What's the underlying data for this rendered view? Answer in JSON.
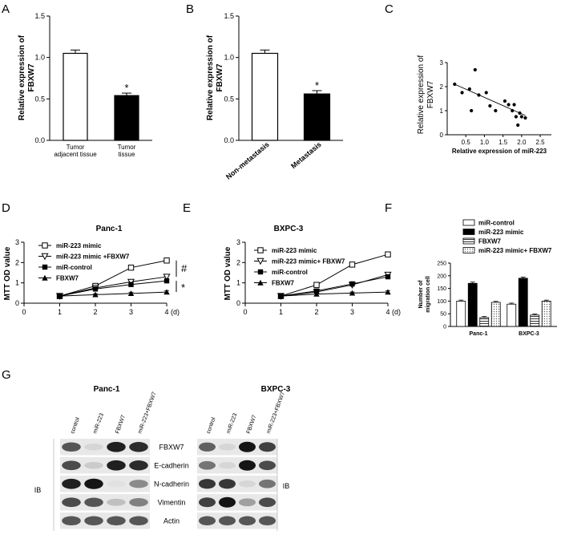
{
  "panels": {
    "A": "A",
    "B": "B",
    "C": "C",
    "D": "D",
    "E": "E",
    "F": "F",
    "G": "G"
  },
  "chart_data": [
    {
      "id": "A",
      "type": "bar",
      "categories": [
        "Tumor adjacent tissue",
        "Tumor tissue"
      ],
      "cat_lines": [
        [
          "Tumor",
          "adjacent tissue"
        ],
        [
          "Tumor",
          "tissue"
        ]
      ],
      "values": [
        1.05,
        0.54
      ],
      "errors": [
        0.04,
        0.03
      ],
      "fills": [
        "#ffffff",
        "#000000"
      ],
      "ylabel": "Relative expression of FBXW7",
      "ylabel_lines": [
        "Relative expression of",
        "FBXW7"
      ],
      "ylim": [
        0,
        1.5
      ],
      "yticks": [
        "0.0",
        "0.5",
        "1.0",
        "1.5"
      ],
      "annotation": "*"
    },
    {
      "id": "B",
      "type": "bar",
      "categories": [
        "Non-metastasis",
        "Metastasis"
      ],
      "values": [
        1.05,
        0.56
      ],
      "errors": [
        0.04,
        0.04
      ],
      "fills": [
        "#ffffff",
        "#000000"
      ],
      "ylabel": "Relative expression of FBXW7",
      "ylabel_lines": [
        "Relative expression of",
        "FBXW7"
      ],
      "ylim": [
        0,
        1.5
      ],
      "yticks": [
        "0.0",
        "0.5",
        "1.0",
        "1.5"
      ],
      "annotation": "*"
    },
    {
      "id": "C",
      "type": "scatter",
      "points": [
        [
          0.2,
          2.1
        ],
        [
          0.4,
          1.75
        ],
        [
          0.6,
          1.9
        ],
        [
          0.65,
          1.0
        ],
        [
          0.75,
          2.7
        ],
        [
          0.85,
          1.65
        ],
        [
          1.05,
          1.75
        ],
        [
          1.15,
          1.2
        ],
        [
          1.3,
          1.0
        ],
        [
          1.55,
          1.4
        ],
        [
          1.65,
          1.25
        ],
        [
          1.75,
          1.0
        ],
        [
          1.8,
          1.25
        ],
        [
          1.85,
          0.75
        ],
        [
          1.9,
          0.4
        ],
        [
          1.95,
          0.9
        ],
        [
          2.0,
          0.75
        ],
        [
          2.1,
          0.7
        ]
      ],
      "fit": [
        [
          0.2,
          2.1
        ],
        [
          2.1,
          0.8
        ]
      ],
      "xlabel": "Relative expression of miR-223",
      "ylabel": "Relative expression of FBXW7",
      "ylabel_lines": [
        "Relative expression of",
        "FBXW7"
      ],
      "xlim": [
        0,
        2.8
      ],
      "ylim": [
        0,
        3
      ],
      "xticks": [
        "0.5",
        "1.0",
        "1.5",
        "2.0",
        "2.5"
      ],
      "yticks": [
        "0",
        "1",
        "2",
        "3"
      ]
    },
    {
      "id": "D",
      "type": "line",
      "title": "Panc-1",
      "x": [
        1,
        2,
        3,
        4
      ],
      "xticks": [
        "0",
        "1",
        "2",
        "3",
        "4"
      ],
      "xunit": "(d)",
      "ylabel": "MTT OD value",
      "ylim": [
        0,
        3
      ],
      "yticks": [
        "0",
        "1",
        "2",
        "3"
      ],
      "series": [
        {
          "name": "miR-223 mimic",
          "marker": "square-open",
          "values": [
            0.35,
            0.85,
            1.75,
            2.1
          ],
          "errors": [
            0.03,
            0.06,
            0.08,
            0.1
          ]
        },
        {
          "name": "miR-223 mimic +FBXW7",
          "marker": "triangle-down-open",
          "values": [
            0.35,
            0.75,
            1.05,
            1.3
          ],
          "errors": [
            0.03,
            0.05,
            0.06,
            0.08
          ]
        },
        {
          "name": "miR-control",
          "marker": "square-filled",
          "values": [
            0.35,
            0.7,
            0.92,
            1.1
          ],
          "errors": [
            0.03,
            0.05,
            0.06,
            0.07
          ]
        },
        {
          "name": "FBXW7",
          "marker": "triangle-up-filled",
          "values": [
            0.35,
            0.42,
            0.48,
            0.55
          ],
          "errors": [
            0.03,
            0.05,
            0.06,
            0.07
          ]
        }
      ],
      "annotations": [
        "#",
        "*"
      ]
    },
    {
      "id": "E",
      "type": "line",
      "title": "BXPC-3",
      "x": [
        1,
        2,
        3,
        4
      ],
      "xticks": [
        "0",
        "1",
        "2",
        "3",
        "4"
      ],
      "xunit": "(d)",
      "ylabel": "MTT OD value",
      "ylim": [
        0,
        3
      ],
      "yticks": [
        "0",
        "1",
        "2",
        "3"
      ],
      "series": [
        {
          "name": "miR-223 mimic",
          "marker": "square-open",
          "values": [
            0.35,
            0.9,
            1.9,
            2.4
          ],
          "errors": [
            0.03,
            0.1,
            0.1,
            0.12
          ]
        },
        {
          "name": "miR-223 mimic+ FBXW7",
          "marker": "triangle-down-open",
          "values": [
            0.35,
            0.55,
            0.9,
            1.4
          ],
          "errors": [
            0.03,
            0.06,
            0.07,
            0.08
          ]
        },
        {
          "name": "miR-control",
          "marker": "square-filled",
          "values": [
            0.35,
            0.6,
            0.95,
            1.3
          ],
          "errors": [
            0.03,
            0.06,
            0.07,
            0.08
          ]
        },
        {
          "name": "FBXW7",
          "marker": "triangle-up-filled",
          "values": [
            0.35,
            0.45,
            0.5,
            0.55
          ],
          "errors": [
            0.03,
            0.05,
            0.05,
            0.06
          ]
        }
      ]
    },
    {
      "id": "F",
      "type": "bar",
      "categories": [
        "Panc-1",
        "BXPC-3"
      ],
      "ylabel": "Number of migration cell",
      "ylabel_lines": [
        "Number of",
        "migration cell"
      ],
      "ylim": [
        0,
        250
      ],
      "yticks": [
        "0",
        "50",
        "100",
        "150",
        "200",
        "250"
      ],
      "series": [
        {
          "name": "miR-control",
          "fill": "white",
          "values": [
            100,
            88
          ],
          "errors": [
            4,
            4
          ]
        },
        {
          "name": "miR-223 mimic",
          "fill": "black",
          "values": [
            170,
            190
          ],
          "errors": [
            5,
            5
          ]
        },
        {
          "name": "FBXW7",
          "fill": "hatch",
          "values": [
            35,
            45
          ],
          "errors": [
            4,
            4
          ]
        },
        {
          "name": "miR-223 mimic+ FBXW7",
          "fill": "dots",
          "values": [
            95,
            100
          ],
          "errors": [
            4,
            4
          ]
        }
      ]
    }
  ],
  "blot": {
    "ib": "IB",
    "rows": [
      "FBXW7",
      "E-cadherin",
      "N-cadherin",
      "Vimentin",
      "Actin"
    ],
    "groups": [
      {
        "title": "Panc-1",
        "lanes": [
          "control",
          "miR-223",
          "FBXW7",
          "miR-223+FBXW7"
        ],
        "bands": [
          [
            0.7,
            0.1,
            0.95,
            0.9
          ],
          [
            0.75,
            0.15,
            0.95,
            0.9
          ],
          [
            0.95,
            1.0,
            0.05,
            0.45
          ],
          [
            0.75,
            0.7,
            0.2,
            0.5
          ],
          [
            0.7,
            0.7,
            0.7,
            0.7
          ]
        ]
      },
      {
        "title": "BXPC-3",
        "lanes": [
          "control",
          "miR-223",
          "FBXW7",
          "miR-223+FBXW7"
        ],
        "bands": [
          [
            0.65,
            0.1,
            1.0,
            0.8
          ],
          [
            0.55,
            0.1,
            1.0,
            0.75
          ],
          [
            0.85,
            0.85,
            0.1,
            0.55
          ],
          [
            0.8,
            1.0,
            0.35,
            0.75
          ],
          [
            0.7,
            0.7,
            0.7,
            0.7
          ]
        ]
      }
    ]
  }
}
